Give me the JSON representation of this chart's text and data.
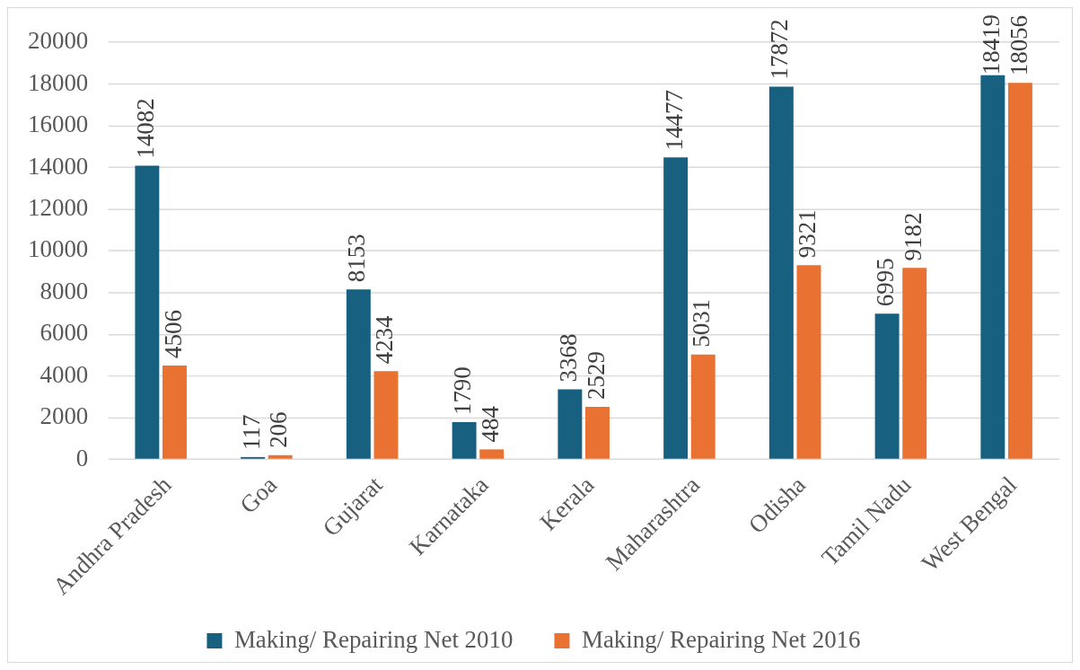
{
  "chart_data": {
    "type": "bar",
    "categories": [
      "Andhra Pradesh",
      "Goa",
      "Gujarat",
      "Karnataka",
      "Kerala",
      "Maharashtra",
      "Odisha",
      "Tamil Nadu",
      "West Bengal"
    ],
    "series": [
      {
        "name": "Making/ Repairing Net 2010",
        "color": "#17607f",
        "values": [
          14082,
          117,
          8153,
          1790,
          3368,
          14477,
          17872,
          6995,
          18419
        ]
      },
      {
        "name": "Making/ Repairing Net 2016",
        "color": "#e97132",
        "values": [
          4506,
          206,
          4234,
          484,
          2529,
          5031,
          9321,
          9182,
          18056
        ]
      }
    ],
    "ylim": [
      0,
      20000
    ],
    "yticks": [
      0,
      2000,
      4000,
      6000,
      8000,
      10000,
      12000,
      14000,
      16000,
      18000,
      20000
    ],
    "grid": "y",
    "legend": "bottom",
    "data_labels": true
  }
}
